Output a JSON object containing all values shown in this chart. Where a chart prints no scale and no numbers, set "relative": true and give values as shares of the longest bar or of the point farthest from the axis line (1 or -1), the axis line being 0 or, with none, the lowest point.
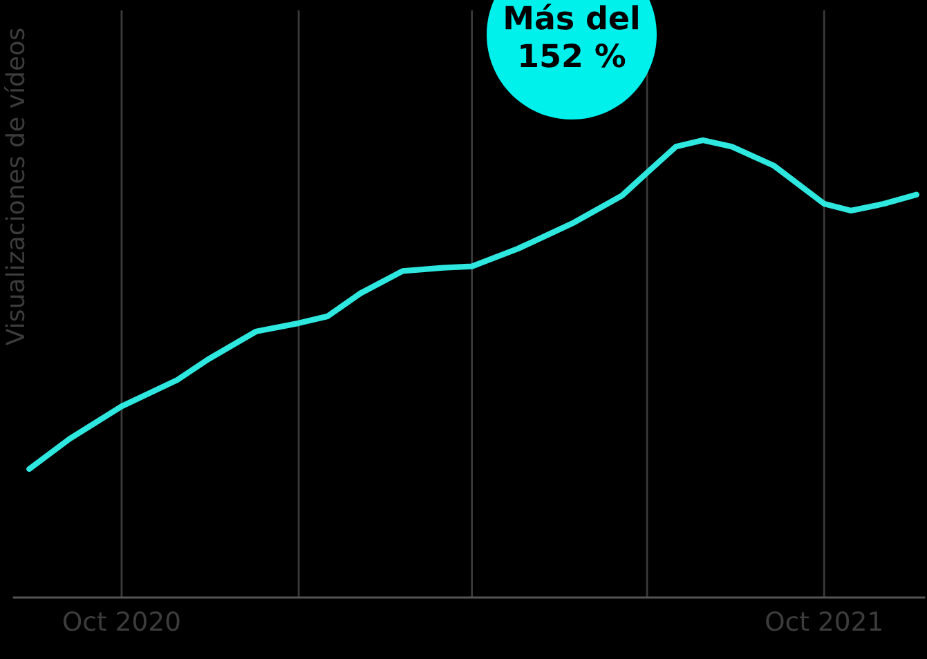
{
  "chart_data": {
    "type": "line",
    "relative": true,
    "ylabel": "Visualizaciones de vídeos",
    "annotations": [
      "Más del\n152 %"
    ],
    "x": [
      "2020-08-14",
      "2020-09-04",
      "2020-10-01",
      "2020-10-30",
      "2020-11-15",
      "2020-12-10",
      "2021-01-01",
      "2021-01-16",
      "2021-02-02",
      "2021-02-24",
      "2021-03-17",
      "2021-04-01",
      "2021-04-25",
      "2021-05-24",
      "2021-06-18",
      "2021-07-01",
      "2021-07-16",
      "2021-07-30",
      "2021-08-14",
      "2021-09-05",
      "2021-10-01",
      "2021-10-15",
      "2021-11-01",
      "2021-11-18"
    ],
    "series": [
      {
        "color": "#2ee8e0",
        "values": [
          0.281,
          0.347,
          0.418,
          0.476,
          0.521,
          0.582,
          0.6,
          0.615,
          0.665,
          0.714,
          0.721,
          0.724,
          0.763,
          0.82,
          0.879,
          0.929,
          0.986,
          1,
          0.986,
          0.944,
          0.861,
          0.846,
          0.861,
          0.881
        ]
      }
    ],
    "xlim": [
      "2020-08-06",
      "2021-11-22"
    ],
    "xticks": [
      {
        "value": "2020-10-01",
        "label": "Oct 2020"
      },
      {
        "value": "2021-01-01",
        "label": null
      },
      {
        "value": "2021-04-01",
        "label": null
      },
      {
        "value": "2021-07-01",
        "label": null
      },
      {
        "value": "2021-10-01",
        "label": "Oct 2021"
      }
    ],
    "grid": "x",
    "legend": false,
    "marker": "none",
    "line_style": "solid"
  }
}
